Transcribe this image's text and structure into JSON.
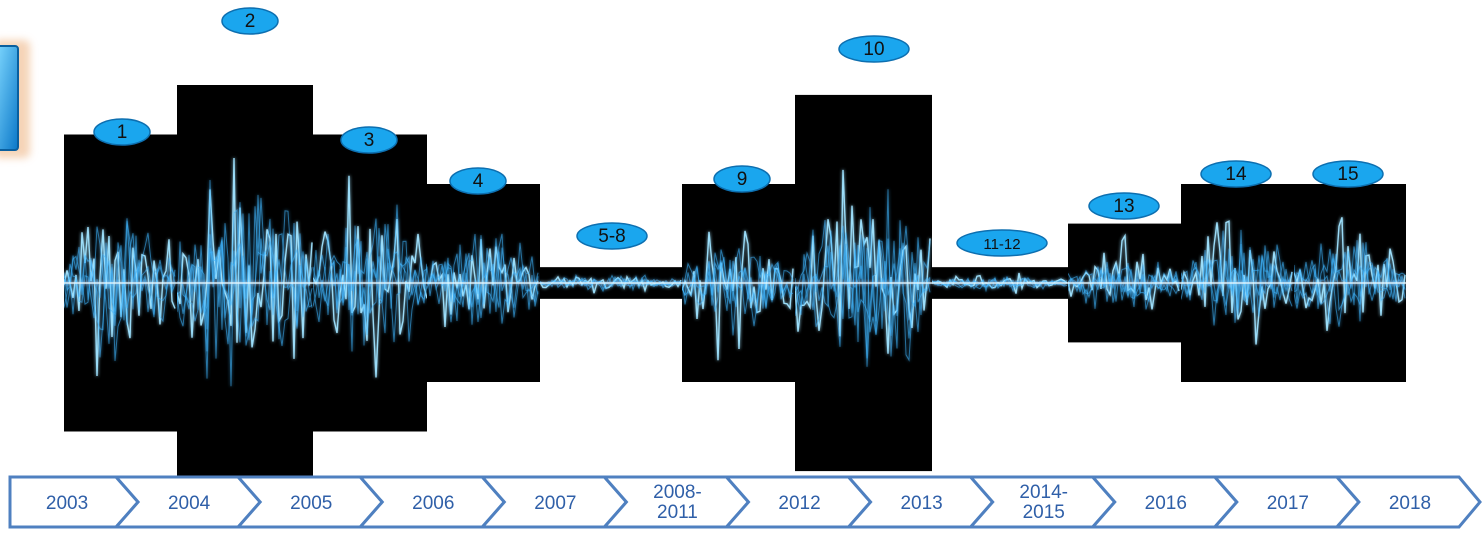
{
  "colors": {
    "wave": "#3fb7ff",
    "wave_glow": "#9fe3ff",
    "panel_bg": "#000000",
    "badge_fill": "#1aa6ee",
    "badge_text": "#111111",
    "chevron_stroke": "#4f80c0",
    "chevron_text": "#2f5fa8"
  },
  "segments": [
    {
      "badge": "1",
      "intensity": 0.75
    },
    {
      "badge": "2",
      "intensity": 1.0
    },
    {
      "badge": "3",
      "intensity": 0.75
    },
    {
      "badge": "4",
      "intensity": 0.5
    },
    {
      "badge": "5-8",
      "intensity": 0.08
    },
    {
      "badge": "9",
      "intensity": 0.5
    },
    {
      "badge": "10",
      "intensity": 0.95
    },
    {
      "badge": "11-12",
      "intensity": 0.08
    },
    {
      "badge": "13",
      "intensity": 0.3
    },
    {
      "badge": "14",
      "intensity": 0.5
    },
    {
      "badge": "15",
      "intensity": 0.5
    }
  ],
  "timeline": [
    {
      "label": "2003"
    },
    {
      "label": "2004"
    },
    {
      "label": "2005"
    },
    {
      "label": "2006"
    },
    {
      "label": "2007"
    },
    {
      "label": "2008-\n2011"
    },
    {
      "label": "2012"
    },
    {
      "label": "2013"
    },
    {
      "label": "2014-\n2015"
    },
    {
      "label": "2016"
    },
    {
      "label": "2017"
    },
    {
      "label": "2018"
    }
  ]
}
